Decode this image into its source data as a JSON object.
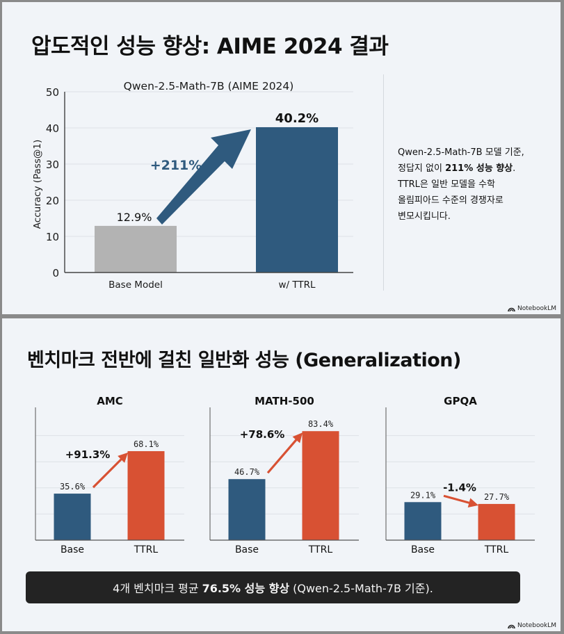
{
  "slide1": {
    "title": "압도적인 성능 향상: AIME 2024 결과",
    "description": {
      "line1": "Qwen-2.5-Math-7B 모델 기준,",
      "line2_prefix": "정답지 없이",
      "line2_bold": "211% 성능 향상",
      "line2_suffix": ".",
      "line3": "TTRL은 일반 모델을 수학",
      "line4": "올림피아드 수준의 경쟁자로",
      "line5": "변모시킵니다."
    },
    "brand": "NotebookLM"
  },
  "slide2": {
    "title": "벤치마크 전반에 걸친 일반화 성능 (Generalization)",
    "summary": {
      "prefix": "4개 벤치마크 평균",
      "bold": "76.5% 성능 향상",
      "suffix": "(Qwen-2.5-Math-7B 기준)."
    },
    "brand": "NotebookLM"
  },
  "chart_data": [
    {
      "type": "bar",
      "title": "Qwen-2.5-Math-7B (AIME 2024)",
      "xlabel": "",
      "ylabel": "Accuracy (Pass@1)",
      "ylim": [
        0,
        50
      ],
      "yticks": [
        "0",
        "10",
        "20",
        "30",
        "40",
        "50"
      ],
      "grid": true,
      "categories": [
        "Base Model",
        "w/ TTRL"
      ],
      "values": [
        12.9,
        40.2
      ],
      "value_labels": [
        "12.9%",
        "40.2%"
      ],
      "colors": [
        "#b3b3b3",
        "#2f5a7e"
      ],
      "annotation": "+211%",
      "annotation_color": "#2f5a7e"
    },
    {
      "type": "bar",
      "title": "AMC",
      "categories": [
        "Base",
        "TTRL"
      ],
      "values": [
        35.6,
        68.1
      ],
      "value_labels": [
        "35.6%",
        "68.1%"
      ],
      "ylim": [
        0,
        100
      ],
      "grid": true,
      "colors": [
        "#2f5a7e",
        "#d85133"
      ],
      "annotation": "+91.3%"
    },
    {
      "type": "bar",
      "title": "MATH-500",
      "categories": [
        "Base",
        "TTRL"
      ],
      "values": [
        46.7,
        83.4
      ],
      "value_labels": [
        "46.7%",
        "83.4%"
      ],
      "ylim": [
        0,
        100
      ],
      "grid": true,
      "colors": [
        "#2f5a7e",
        "#d85133"
      ],
      "annotation": "+78.6%"
    },
    {
      "type": "bar",
      "title": "GPQA",
      "categories": [
        "Base",
        "TTRL"
      ],
      "values": [
        29.1,
        27.7
      ],
      "value_labels": [
        "29.1%",
        "27.7%"
      ],
      "ylim": [
        0,
        100
      ],
      "grid": true,
      "colors": [
        "#2f5a7e",
        "#d85133"
      ],
      "annotation": "-1.4%"
    }
  ],
  "icons": {
    "brand": "notebooklm-logo-icon"
  }
}
